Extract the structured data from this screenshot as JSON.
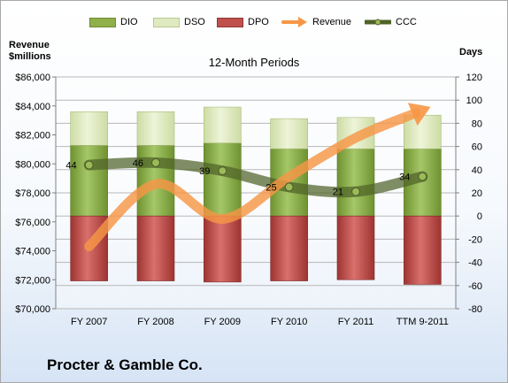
{
  "chart_data": {
    "type": "bar",
    "title": "12-Month Periods",
    "company": "Procter & Gamble Co.",
    "categories": [
      "FY 2007",
      "FY 2008",
      "FY 2009",
      "FY 2010",
      "FY 2011",
      "TTM 9-2011"
    ],
    "left_axis": {
      "title_line1": "Revenue",
      "title_line2": "$millions",
      "ylim": [
        70000,
        86000
      ],
      "ticks": [
        "$70,000",
        "$72,000",
        "$74,000",
        "$76,000",
        "$78,000",
        "$80,000",
        "$82,000",
        "$84,000",
        "$86,000"
      ]
    },
    "right_axis": {
      "title": "Days",
      "ylim": [
        -80,
        120
      ],
      "ticks": [
        "-80",
        "-60",
        "-40",
        "-20",
        "0",
        "20",
        "40",
        "60",
        "80",
        "100",
        "120"
      ]
    },
    "legend_position": "top",
    "grid": true,
    "series": [
      {
        "name": "DIO",
        "type": "stacked-bar",
        "axis": "right",
        "color": "#8fb04a",
        "values": [
          61,
          61,
          63,
          58,
          58,
          58
        ]
      },
      {
        "name": "DSO",
        "type": "stacked-bar",
        "axis": "right",
        "color": "#dfeac0",
        "values": [
          29,
          29,
          31,
          26,
          27,
          29
        ]
      },
      {
        "name": "DPO",
        "type": "bar-below-zero",
        "axis": "right",
        "color": "#c0504d",
        "values": [
          -56,
          -56,
          -57,
          -56,
          -55,
          -59
        ]
      },
      {
        "name": "Revenue",
        "type": "arrow-line",
        "axis": "left",
        "color": "#f79646",
        "values": [
          74300,
          78600,
          76200,
          79100,
          81800,
          83700
        ]
      },
      {
        "name": "CCC",
        "type": "line",
        "axis": "right",
        "color": "#4f6228",
        "values": [
          44,
          46,
          39,
          25,
          21,
          34
        ]
      }
    ],
    "data_labels": [
      "44",
      "46",
      "39",
      "25",
      "21",
      "34"
    ]
  }
}
